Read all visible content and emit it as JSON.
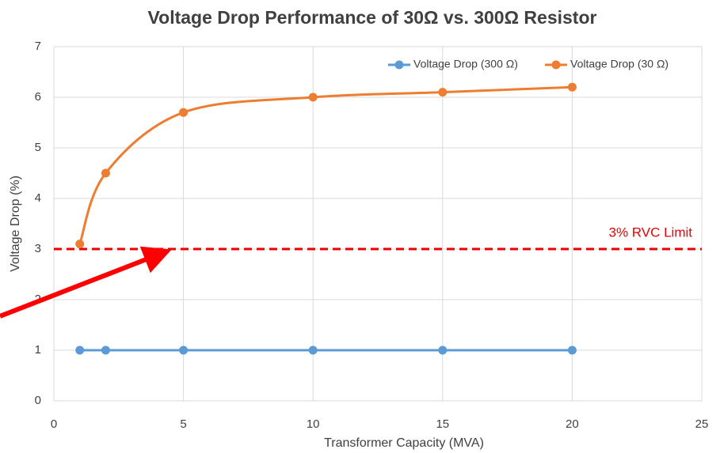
{
  "chart_data": {
    "type": "line",
    "title": "Voltage Drop Performance of 30Ω vs. 300Ω Resistor",
    "x_label": "Transformer Capacity (MVA)",
    "y_label": "Voltage Drop (%)",
    "x": [
      1,
      2,
      5,
      10,
      15,
      20
    ],
    "series": [
      {
        "name": "Voltage Drop (300 Ω)",
        "color": "#5b9bd5",
        "values": [
          1,
          1,
          1,
          1,
          1,
          1
        ],
        "smooth": false
      },
      {
        "name": "Voltage Drop (30 Ω)",
        "color": "#ed7d31",
        "values": [
          3.1,
          4.5,
          5.7,
          6.0,
          6.1,
          6.2
        ],
        "smooth": true
      }
    ],
    "threshold": {
      "value": 3,
      "label": "3% RVC Limit",
      "color": "#e60000"
    },
    "xlim": [
      0,
      25
    ],
    "xticks": [
      0,
      5,
      10,
      15,
      20,
      25
    ],
    "ylim": [
      0,
      7
    ],
    "yticks": [
      0,
      1,
      2,
      3,
      4,
      5,
      6,
      7
    ],
    "grid": true,
    "legend": "top-right"
  }
}
